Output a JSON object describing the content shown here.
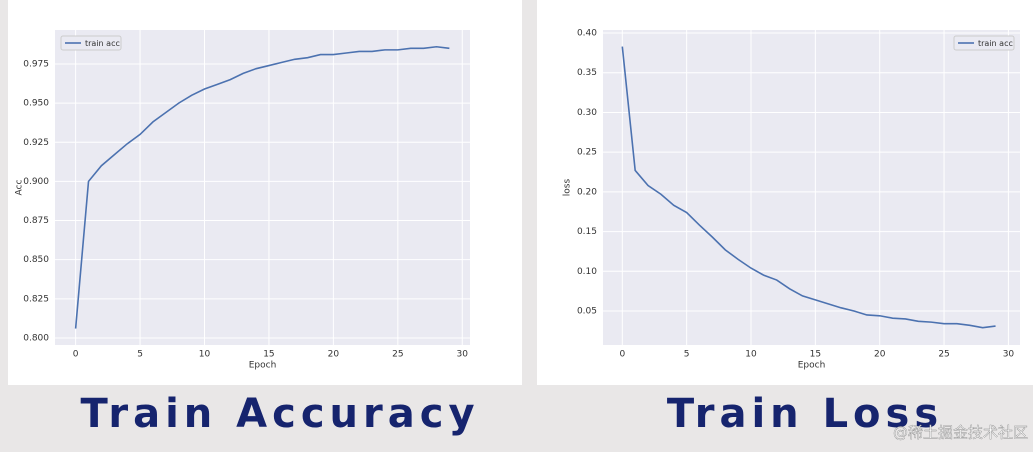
{
  "chart_data": [
    {
      "type": "line",
      "xlabel": "Epoch",
      "ylabel": "Acc",
      "legend": "upper left",
      "x": [
        0,
        1,
        2,
        3,
        4,
        5,
        6,
        7,
        8,
        9,
        10,
        11,
        12,
        13,
        14,
        15,
        16,
        17,
        18,
        19,
        20,
        21,
        22,
        23,
        24,
        25,
        26,
        27,
        28,
        29
      ],
      "series": [
        {
          "name": "train acc",
          "color": "#4c72b0",
          "values": [
            0.806,
            0.9,
            0.91,
            0.917,
            0.924,
            0.93,
            0.938,
            0.944,
            0.95,
            0.955,
            0.959,
            0.962,
            0.965,
            0.969,
            0.972,
            0.974,
            0.976,
            0.978,
            0.979,
            0.981,
            0.981,
            0.982,
            0.983,
            0.983,
            0.984,
            0.984,
            0.985,
            0.985,
            0.986,
            0.985
          ]
        }
      ],
      "xlim": [
        -1.6,
        30.6
      ],
      "xticks": [
        0,
        5,
        10,
        15,
        20,
        25,
        30
      ],
      "ylim": [
        0.7955,
        0.9967
      ],
      "yticks": [
        {
          "value": 0.8,
          "label": "0.800"
        },
        0.825,
        {
          "value": 0.85,
          "label": "0.850"
        },
        0.875,
        {
          "value": 0.9,
          "label": "0.900"
        },
        0.925,
        {
          "value": 0.95,
          "label": "0.950"
        },
        0.975
      ],
      "grid": true
    },
    {
      "type": "line",
      "xlabel": "Epoch",
      "ylabel": "loss",
      "legend": "upper right",
      "x": [
        0,
        1,
        2,
        3,
        4,
        5,
        6,
        7,
        8,
        9,
        10,
        11,
        12,
        13,
        14,
        15,
        16,
        17,
        18,
        19,
        20,
        21,
        22,
        23,
        24,
        25,
        26,
        27,
        28,
        29
      ],
      "series": [
        {
          "name": "train acc",
          "color": "#4c72b0",
          "values": [
            0.383,
            0.227,
            0.208,
            0.197,
            0.183,
            0.174,
            0.158,
            0.143,
            0.127,
            0.115,
            0.104,
            0.095,
            0.089,
            0.078,
            0.069,
            0.064,
            0.059,
            0.054,
            0.05,
            0.045,
            0.044,
            0.041,
            0.04,
            0.037,
            0.036,
            0.034,
            0.034,
            0.032,
            0.029,
            0.031
          ]
        }
      ],
      "xlim": [
        -1.5,
        30.9
      ],
      "xticks": [
        0,
        5,
        10,
        15,
        20,
        25,
        30
      ],
      "ylim": [
        0.0072,
        0.4038
      ],
      "yticks": [
        0.05,
        {
          "value": 0.1,
          "label": "0.10"
        },
        0.15,
        {
          "value": 0.2,
          "label": "0.20"
        },
        0.25,
        {
          "value": 0.3,
          "label": "0.30"
        },
        0.35,
        {
          "value": 0.4,
          "label": "0.40"
        }
      ],
      "grid": true
    }
  ],
  "captions": [
    "Train Accuracy",
    "Train Loss"
  ],
  "watermark": "@稀土掘金技术社区"
}
